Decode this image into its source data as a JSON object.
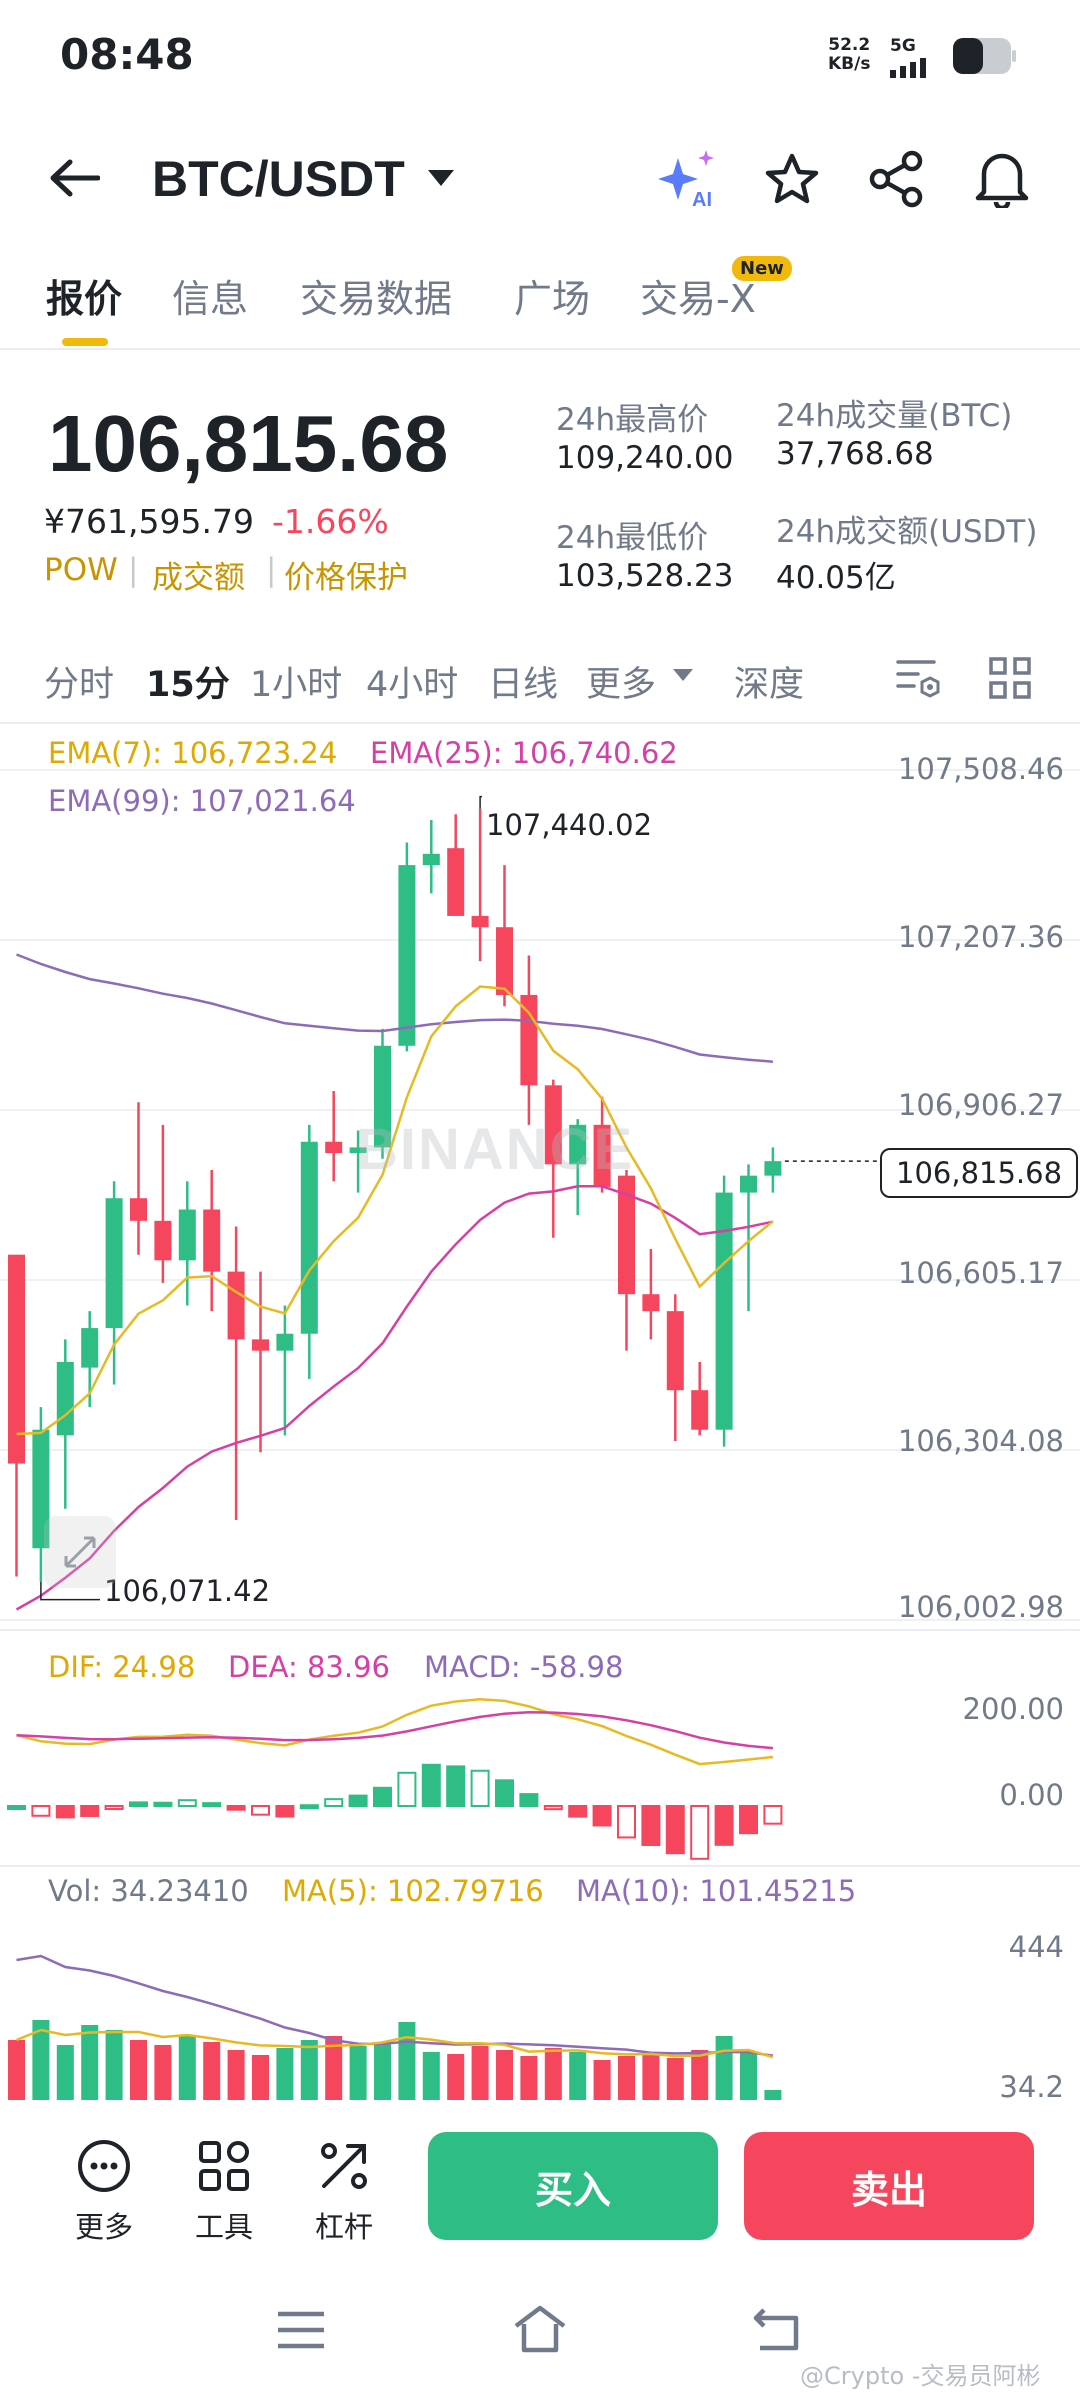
{
  "status": {
    "time": "08:48",
    "net_speed": "52.2",
    "net_unit": "KB/s",
    "network": "5G"
  },
  "header": {
    "pair": "BTC/USDT"
  },
  "tabs": [
    {
      "label": "报价",
      "active": true
    },
    {
      "label": "信息"
    },
    {
      "label": "交易数据"
    },
    {
      "label": "广场"
    },
    {
      "label": "交易-X",
      "badge": "New"
    }
  ],
  "ticker": {
    "last_price": "106,815.68",
    "cny_price": "¥761,595.79",
    "change": "-1.66%",
    "tags": [
      "POW",
      "成交额",
      "价格保护"
    ],
    "high_label": "24h最高价",
    "high": "109,240.00",
    "low_label": "24h最低价",
    "low": "103,528.23",
    "vol_btc_label": "24h成交量(BTC)",
    "vol_btc": "37,768.68",
    "vol_usdt_label": "24h成交额(USDT)",
    "vol_usdt": "40.05亿"
  },
  "timeframes": [
    "分时",
    "15分",
    "1小时",
    "4小时",
    "日线",
    "更多",
    "深度"
  ],
  "active_timeframe": "15分",
  "chart": {
    "ema7": "EMA(7): 106,723.24",
    "ema25": "EMA(25): 106,740.62",
    "ema99": "EMA(99): 107,021.64",
    "y_axis": [
      "107,508.46",
      "107,207.36",
      "106,906.27",
      "106,605.17",
      "106,304.08",
      "106,002.98"
    ],
    "current_price": "106,815.68",
    "high_marker": "107,440.02",
    "low_marker": "106,071.42",
    "watermark": "BINANCE"
  },
  "macd": {
    "dif": "DIF: 24.98",
    "dea": "DEA: 83.96",
    "macd": "MACD: -58.98",
    "y_axis": [
      "200.00",
      "0.00"
    ]
  },
  "volume": {
    "vol": "Vol: 34.23410",
    "ma5": "MA(5): 102.79716",
    "ma10": "MA(10): 101.45215",
    "y_axis": [
      "444",
      "34.2"
    ]
  },
  "bottom": {
    "more": "更多",
    "tools": "工具",
    "leverage": "杠杆",
    "buy": "买入",
    "sell": "卖出"
  },
  "footer_watermark": "@Crypto -交易员阿彬",
  "colors": {
    "up": "#2ebd85",
    "down": "#f6465d",
    "accent": "#f0b90b",
    "ema7": "#e8b923",
    "ema25": "#d63fa5",
    "ema99": "#8e6bb8"
  },
  "chart_data": {
    "type": "candlestick",
    "timeframe": "15分",
    "ylim": [
      106002.98,
      107508.46
    ],
    "candles": [
      {
        "o": 106650,
        "h": 106650,
        "l": 106080,
        "c": 106280
      },
      {
        "o": 106130,
        "h": 106380,
        "l": 106071,
        "c": 106340
      },
      {
        "o": 106330,
        "h": 106500,
        "l": 106200,
        "c": 106460
      },
      {
        "o": 106450,
        "h": 106550,
        "l": 106380,
        "c": 106520
      },
      {
        "o": 106520,
        "h": 106780,
        "l": 106420,
        "c": 106750
      },
      {
        "o": 106750,
        "h": 106920,
        "l": 106650,
        "c": 106710
      },
      {
        "o": 106710,
        "h": 106880,
        "l": 106600,
        "c": 106640
      },
      {
        "o": 106640,
        "h": 106780,
        "l": 106560,
        "c": 106730
      },
      {
        "o": 106730,
        "h": 106800,
        "l": 106550,
        "c": 106620
      },
      {
        "o": 106620,
        "h": 106700,
        "l": 106180,
        "c": 106500
      },
      {
        "o": 106500,
        "h": 106620,
        "l": 106300,
        "c": 106480
      },
      {
        "o": 106480,
        "h": 106560,
        "l": 106330,
        "c": 106510
      },
      {
        "o": 106510,
        "h": 106880,
        "l": 106430,
        "c": 106850
      },
      {
        "o": 106850,
        "h": 106940,
        "l": 106780,
        "c": 106830
      },
      {
        "o": 106830,
        "h": 106870,
        "l": 106760,
        "c": 106840
      },
      {
        "o": 106840,
        "h": 107050,
        "l": 106820,
        "c": 107020
      },
      {
        "o": 107020,
        "h": 107380,
        "l": 107010,
        "c": 107340
      },
      {
        "o": 107340,
        "h": 107420,
        "l": 107290,
        "c": 107360
      },
      {
        "o": 107370,
        "h": 107430,
        "l": 107250,
        "c": 107250
      },
      {
        "o": 107250,
        "h": 107440,
        "l": 107170,
        "c": 107230
      },
      {
        "o": 107230,
        "h": 107340,
        "l": 107090,
        "c": 107110
      },
      {
        "o": 107110,
        "h": 107180,
        "l": 106880,
        "c": 106950
      },
      {
        "o": 106950,
        "h": 106960,
        "l": 106680,
        "c": 106810
      },
      {
        "o": 106810,
        "h": 106890,
        "l": 106720,
        "c": 106880
      },
      {
        "o": 106880,
        "h": 106930,
        "l": 106760,
        "c": 106770
      },
      {
        "o": 106790,
        "h": 106800,
        "l": 106480,
        "c": 106580
      },
      {
        "o": 106580,
        "h": 106660,
        "l": 106500,
        "c": 106550
      },
      {
        "o": 106550,
        "h": 106580,
        "l": 106320,
        "c": 106410
      },
      {
        "o": 106410,
        "h": 106460,
        "l": 106330,
        "c": 106340
      },
      {
        "o": 106340,
        "h": 106790,
        "l": 106310,
        "c": 106760
      },
      {
        "o": 106760,
        "h": 106810,
        "l": 106550,
        "c": 106790
      },
      {
        "o": 106790,
        "h": 106840,
        "l": 106760,
        "c": 106815.68
      }
    ]
  }
}
